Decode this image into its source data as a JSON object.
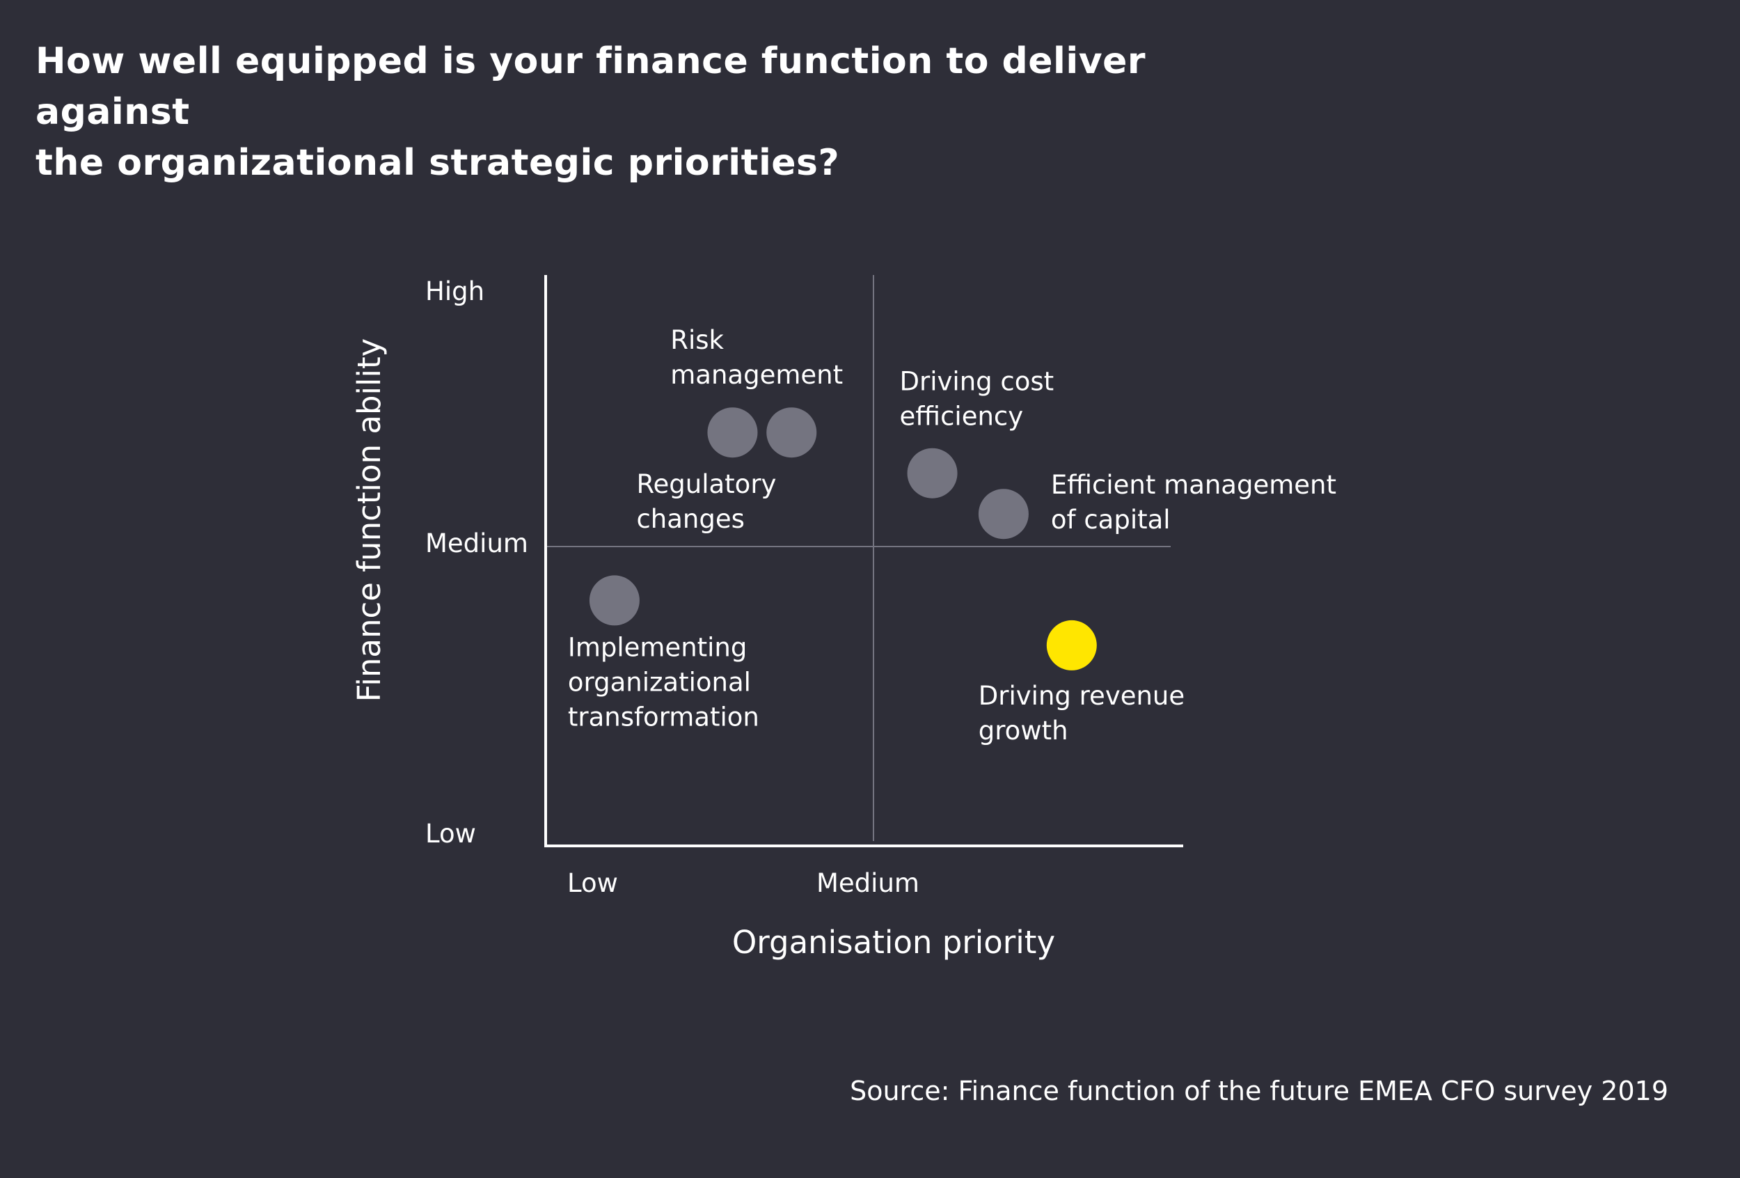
{
  "title": {
    "line1": "How well equipped is your finance function to deliver against",
    "line2": "the organizational strategic priorities?"
  },
  "source": "Source: Finance function of the future EMEA CFO survey 2019",
  "colors": {
    "background": "#2e2e38",
    "point_default": "#747480",
    "point_highlight": "#ffe600",
    "text": "#ffffff",
    "gridline": "#747480"
  },
  "chart_data": {
    "type": "scatter",
    "xlabel": "Organisation priority",
    "ylabel": "Finance function ability",
    "x_ticks": [
      "Low",
      "Medium"
    ],
    "y_ticks": [
      "High",
      "Medium",
      "Low"
    ],
    "xlim": [
      0,
      2
    ],
    "ylim": [
      0,
      2
    ],
    "quadrant_lines": {
      "x": 1,
      "y": 1
    },
    "grid": false,
    "legend": "none",
    "points": [
      {
        "label": [
          "Regulatory",
          "changes"
        ],
        "x": 0.57,
        "y": 1.42,
        "highlight": false
      },
      {
        "label": [
          "Risk",
          "management"
        ],
        "x": 0.75,
        "y": 1.42,
        "highlight": false
      },
      {
        "label": [
          "Driving  cost",
          "efficiency"
        ],
        "x": 1.19,
        "y": 1.27,
        "highlight": false
      },
      {
        "label": [
          "Efficient management",
          "of capital"
        ],
        "x": 1.42,
        "y": 1.12,
        "highlight": false
      },
      {
        "label": [
          "Implementing",
          "organizational",
          "transformation"
        ],
        "x": 0.21,
        "y": 0.82,
        "highlight": false
      },
      {
        "label": [
          "Driving revenue",
          "growth"
        ],
        "x": 1.64,
        "y": 0.67,
        "highlight": true
      }
    ]
  }
}
